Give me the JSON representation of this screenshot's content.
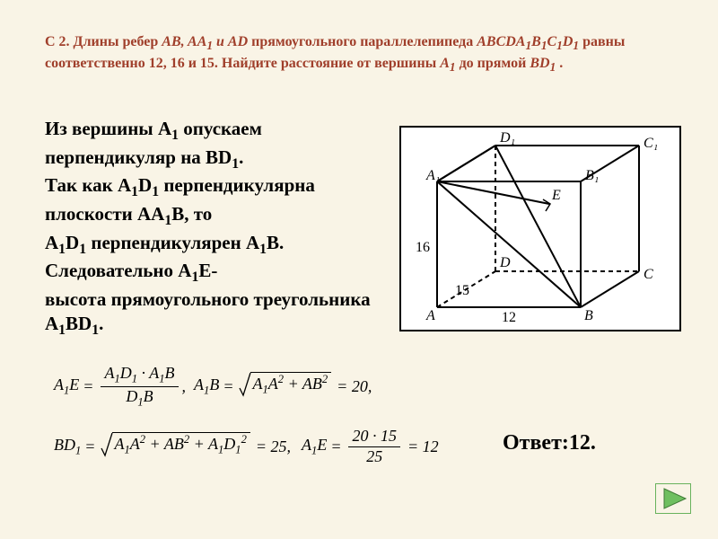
{
  "problem": {
    "prefix": "С 2. Длины ребер ",
    "edges_part": "AB, AA<sub>1</sub> и AD",
    "mid": " прямоугольного параллелепипеда ",
    "solid": "ABCDA<sub>1</sub>B<sub>1</sub>C<sub>1</sub>D<sub>1</sub>",
    "after_solid": " равны соответственно 12, 16 и 15. Найдите расстояние от вершины ",
    "vert": "A<sub>1</sub>",
    "to": " до прямой ",
    "line": "BD<sub>1</sub>",
    "dot": ".",
    "color": "#a03f2b"
  },
  "solution": {
    "text": "Из вершины A<span class='sub'>1</span> опускаем перпендикуляр на BD<span class='sub'>1</span>.<br>Так как A<span class='sub'>1</span>D<span class='sub'>1</span> перпендикулярна плоскости AA<span class='sub'>1</span>B, то<br>A<span class='sub'>1</span>D<span class='sub'>1</span> перпендикулярен A<span class='sub'>1</span>B. Следовательно A<span class='sub'>1</span>E-<br>высота прямоугольного треугольника A<span class='sub'>1</span>BD<span class='sub'>1</span>."
  },
  "formulas": {
    "f1_lhs": "A<span class='fsub'>1</span>E",
    "f1_num": "A<span class='fsub'>1</span>D<span class='fsub'>1</span> · A<span class='fsub'>1</span>B",
    "f1_den": "D<span class='fsub'>1</span>B",
    "f2_lhs": "A<span class='fsub'>1</span>B",
    "f2_rad": "A<span class='fsub'>1</span>A<span class='sup'>2</span> + AB<span class='sup'>2</span>",
    "f2_rhs": "= 20,",
    "f3_lhs": "BD<span class='fsub'>1</span>",
    "f3_rad": "A<span class='fsub'>1</span>A<span class='sup'>2</span> + AB<span class='sup'>2</span> + A<span class='fsub'>1</span>D<span class='fsub'>1</span><span class='sup'>2</span>",
    "f3_rhs": "= 25,",
    "f4_lhs": "A<span class='fsub'>1</span>E",
    "f4_num": "20 · 15",
    "f4_den": "25",
    "f4_rhs": "= 12"
  },
  "answer": {
    "label": "Ответ:",
    "value": "12."
  },
  "diagram": {
    "labels": {
      "A1": "A₁",
      "B1": "B₁",
      "C1": "C₁",
      "D1": "D₁",
      "A": "A",
      "B": "B",
      "C": "C",
      "D": "D",
      "E": "E"
    },
    "edges_text": {
      "AB": "12",
      "AA1": "16",
      "AD": "15"
    },
    "line_color": "#000000",
    "background": "#ffffff",
    "border_color": "#000000"
  },
  "nav": {
    "next_icon": "next-triangle"
  }
}
